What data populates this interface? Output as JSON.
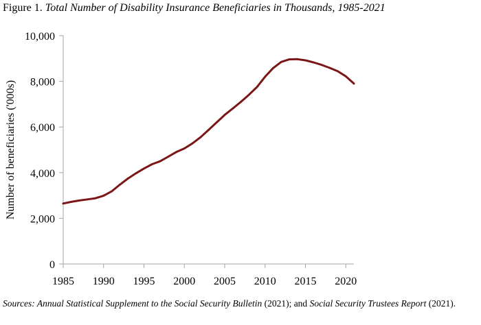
{
  "figure": {
    "label": "Figure 1.",
    "title": "Total Number of Disability Insurance Beneficiaries in Thousands, 1985-2021"
  },
  "chart_data": {
    "type": "line",
    "title": "Total Number of Disability Insurance Beneficiaries in Thousands, 1985-2021",
    "xlabel": "",
    "ylabel": "Number of beneficiaries ('000s)",
    "xlim": [
      1985,
      2021
    ],
    "ylim": [
      0,
      10000
    ],
    "x_ticks": [
      1985,
      1990,
      1995,
      2000,
      2005,
      2010,
      2015,
      2020
    ],
    "y_ticks": [
      0,
      2000,
      4000,
      6000,
      8000,
      10000
    ],
    "y_tick_labels": [
      "0",
      "2,000",
      "4,000",
      "6,000",
      "8,000",
      "10,000"
    ],
    "grid": false,
    "legend": "none",
    "series": [
      {
        "color": "#7b1616",
        "x": [
          1985,
          1986,
          1987,
          1988,
          1989,
          1990,
          1991,
          1992,
          1993,
          1994,
          1995,
          1996,
          1997,
          1998,
          1999,
          2000,
          2001,
          2002,
          2003,
          2004,
          2005,
          2006,
          2007,
          2008,
          2009,
          2010,
          2011,
          2012,
          2013,
          2014,
          2015,
          2016,
          2017,
          2018,
          2019,
          2020,
          2021
        ],
        "y": [
          2650,
          2720,
          2780,
          2830,
          2880,
          2990,
          3180,
          3470,
          3740,
          3970,
          4180,
          4370,
          4500,
          4700,
          4900,
          5060,
          5280,
          5550,
          5870,
          6200,
          6530,
          6810,
          7100,
          7410,
          7750,
          8200,
          8580,
          8850,
          8960,
          8970,
          8920,
          8830,
          8720,
          8590,
          8440,
          8220,
          7900
        ]
      }
    ]
  },
  "source": {
    "prefix": "Sources: ",
    "title1": "Annual Statistical Supplement to the Social Security Bulletin",
    "mid": " (2021); and ",
    "title2": "Social Security Trustees Report",
    "suffix": " (2021)."
  }
}
